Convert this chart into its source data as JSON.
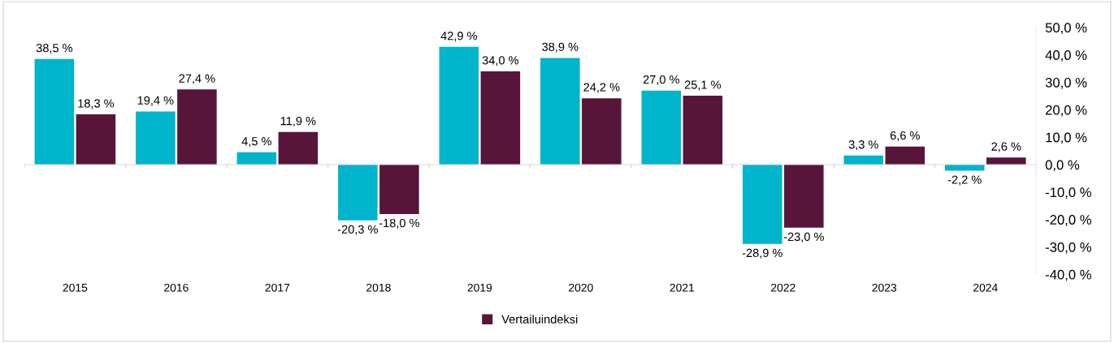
{
  "chart_data": {
    "type": "bar",
    "categories": [
      "2015",
      "2016",
      "2017",
      "2018",
      "2019",
      "2020",
      "2021",
      "2022",
      "2023",
      "2024"
    ],
    "series": [
      {
        "color": "#00b4cc",
        "values": [
          38.5,
          19.4,
          4.5,
          -20.3,
          42.9,
          38.9,
          27.0,
          -28.9,
          3.3,
          -2.2
        ],
        "value_labels": [
          "38,5 %",
          "19,4 %",
          "4,5 %",
          "-20,3 %",
          "42,9 %",
          "38,9 %",
          "27,0 %",
          "-28,9 %",
          "3,3 %",
          "-2,2 %"
        ]
      },
      {
        "name": "Vertailuindeksi",
        "color": "#58153a",
        "values": [
          18.3,
          27.4,
          11.9,
          -18.0,
          34.0,
          24.2,
          25.1,
          -23.0,
          6.6,
          2.6
        ],
        "value_labels": [
          "18,3 %",
          "27,4 %",
          "11,9 %",
          "-18,0 %",
          "34,0 %",
          "24,2 %",
          "25,1 %",
          "-23,0 %",
          "6,6 %",
          "2,6 %"
        ]
      }
    ],
    "ylim": [
      -40,
      50
    ],
    "yticks": [
      {
        "value": 50,
        "label": "50,0 %"
      },
      {
        "value": 40,
        "label": "40,0 %"
      },
      {
        "value": 30,
        "label": "30,0 %"
      },
      {
        "value": 20,
        "label": "20,0 %"
      },
      {
        "value": 10,
        "label": "10,0 %"
      },
      {
        "value": 0,
        "label": "0,0 %"
      },
      {
        "value": -10,
        "label": "-10,0 %"
      },
      {
        "value": -20,
        "label": "-20,0 %"
      },
      {
        "value": -30,
        "label": "-30,0 %"
      },
      {
        "value": -40,
        "label": "-40,0 %"
      }
    ],
    "legend": "bottom"
  }
}
